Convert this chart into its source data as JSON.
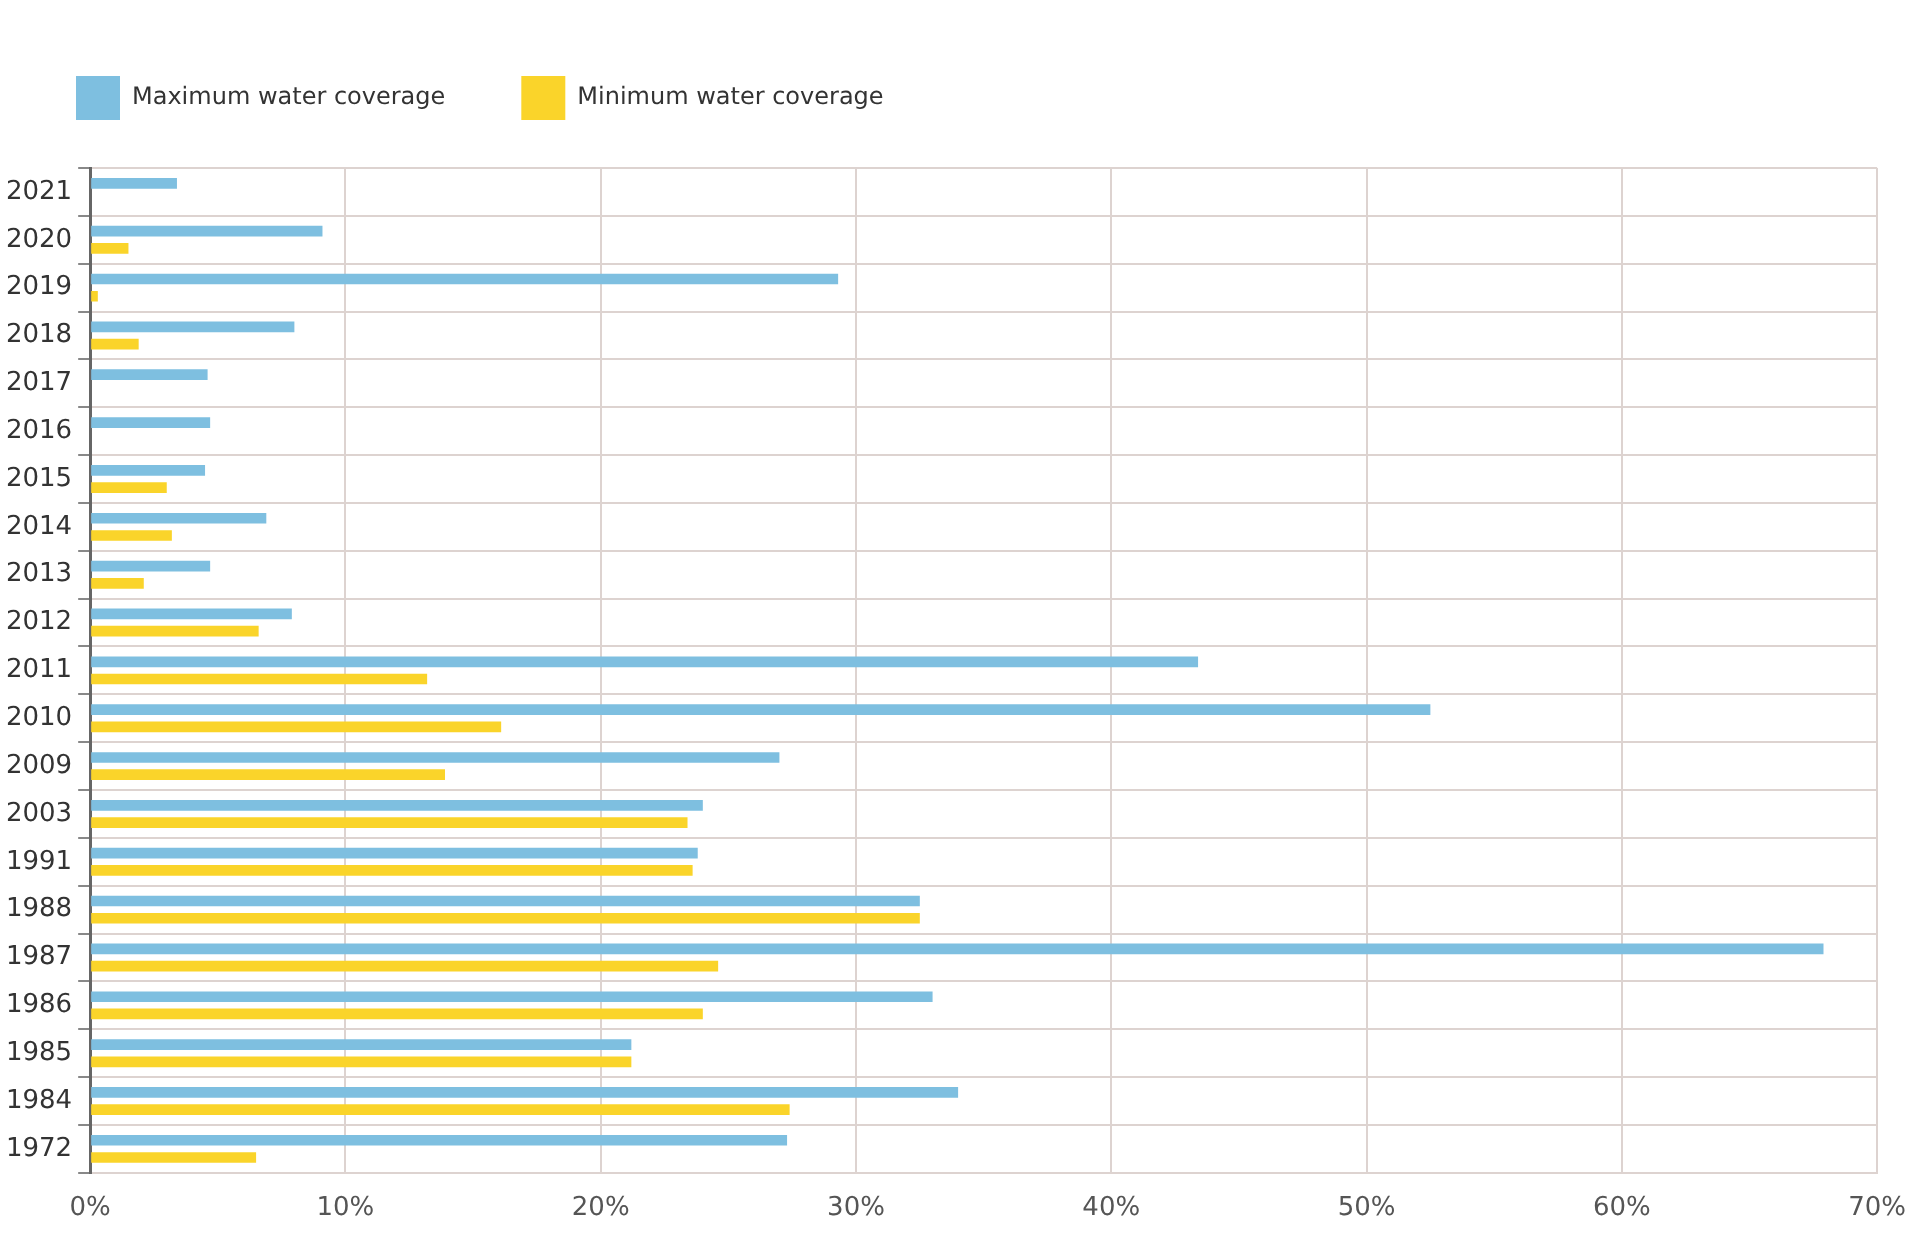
{
  "chart_data": {
    "type": "bar",
    "orientation": "horizontal",
    "categories": [
      "2021",
      "2020",
      "2019",
      "2018",
      "2017",
      "2016",
      "2015",
      "2014",
      "2013",
      "2012",
      "2011",
      "2010",
      "2009",
      "2003",
      "1991",
      "1988",
      "1987",
      "1986",
      "1985",
      "1984",
      "1972"
    ],
    "series": [
      {
        "name": "Maximum water coverage",
        "color": "#7ebfe0",
        "values": [
          3.4,
          9.1,
          29.3,
          8.0,
          4.6,
          4.7,
          4.5,
          6.9,
          4.7,
          7.9,
          43.4,
          52.5,
          27.0,
          24.0,
          23.8,
          32.5,
          67.9,
          33.0,
          21.2,
          34.0,
          27.3
        ]
      },
      {
        "name": "Minimum water coverage",
        "color": "#fad42a",
        "values": [
          null,
          1.5,
          0.3,
          1.9,
          null,
          null,
          3.0,
          3.2,
          2.1,
          6.6,
          13.2,
          16.1,
          13.9,
          23.4,
          23.6,
          32.5,
          24.6,
          24.0,
          21.2,
          27.4,
          6.5
        ]
      }
    ],
    "xlim": [
      0,
      70
    ],
    "xticks": [
      {
        "value": 0,
        "label": "0%"
      },
      {
        "value": 10,
        "label": "10%"
      },
      {
        "value": 20,
        "label": "20%"
      },
      {
        "value": 30,
        "label": "30%"
      },
      {
        "value": 40,
        "label": "40%"
      },
      {
        "value": 50,
        "label": "50%"
      },
      {
        "value": 60,
        "label": "60%"
      },
      {
        "value": 70,
        "label": "70%"
      }
    ],
    "grid": true,
    "legend": "top left"
  }
}
